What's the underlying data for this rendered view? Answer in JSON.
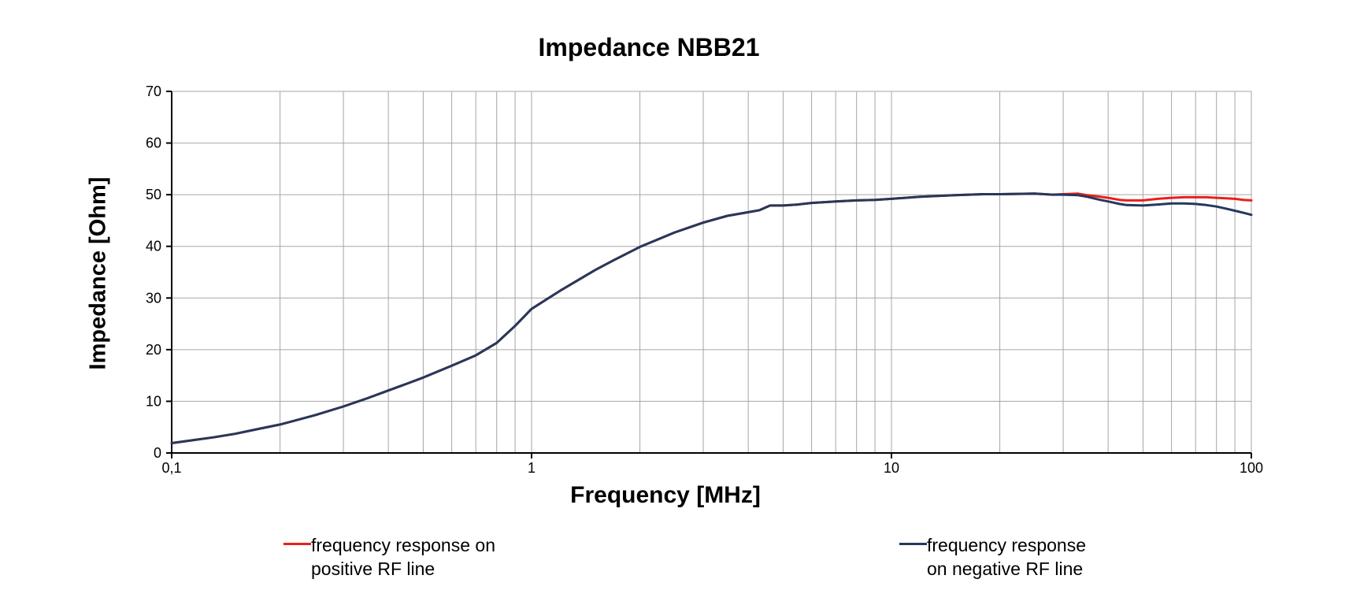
{
  "title": "Impedance NBB21",
  "y_axis": {
    "label": "Impedance [Ohm]",
    "ticks": [
      0,
      10,
      20,
      30,
      40,
      50,
      60,
      70
    ]
  },
  "x_axis": {
    "label": "Frequency [MHz]",
    "ticks": [
      {
        "value": 0.1,
        "label": "0,1"
      },
      {
        "value": 1,
        "label": "1"
      },
      {
        "value": 10,
        "label": "10"
      },
      {
        "value": 100,
        "label": "100"
      }
    ]
  },
  "legend": {
    "items": [
      {
        "line1": "frequency response on",
        "line2": "positive RF line",
        "color": "#e8201a"
      },
      {
        "line1": "frequency response",
        "line2": "on negative RF line",
        "color": "#24395b"
      }
    ]
  },
  "colors": {
    "positive_line": "#e8201a",
    "negative_line": "#24395b",
    "gridline": "#a6a6a6",
    "axis": "#000000",
    "background": "#ffffff",
    "text": "#000000"
  },
  "chart_data": {
    "type": "line",
    "title": "Impedance NBB21",
    "xlabel": "Frequency [MHz]",
    "ylabel": "Impedance [Ohm]",
    "x_scale": "log",
    "xlim": [
      0.1,
      100
    ],
    "ylim": [
      0,
      70
    ],
    "grid": true,
    "legend_position": "below",
    "x": [
      0.1,
      0.11,
      0.13,
      0.15,
      0.17,
      0.2,
      0.25,
      0.3,
      0.35,
      0.4,
      0.45,
      0.5,
      0.6,
      0.7,
      0.8,
      0.9,
      1.0,
      1.2,
      1.5,
      1.7,
      2.0,
      2.5,
      3.0,
      3.5,
      4.0,
      4.3,
      4.6,
      5.0,
      5.5,
      6.0,
      7.0,
      8.0,
      9.0,
      10,
      12,
      15,
      18,
      20,
      25,
      28,
      30,
      33,
      35,
      38,
      40,
      43,
      45,
      50,
      55,
      60,
      65,
      70,
      75,
      80,
      85,
      90,
      95,
      100
    ],
    "series": [
      {
        "name": "frequency response on positive RF line",
        "color": "#e8201a",
        "values": [
          1.9,
          2.3,
          3.0,
          3.7,
          4.5,
          5.5,
          7.3,
          9.0,
          10.6,
          12.1,
          13.4,
          14.6,
          16.9,
          18.9,
          21.3,
          24.6,
          27.9,
          31.4,
          35.4,
          37.4,
          39.9,
          42.7,
          44.6,
          45.9,
          46.6,
          47.0,
          47.9,
          47.9,
          48.1,
          48.4,
          48.7,
          48.9,
          49.0,
          49.2,
          49.6,
          49.9,
          50.1,
          50.1,
          50.2,
          50.0,
          50.1,
          50.2,
          49.9,
          49.6,
          49.4,
          49.0,
          48.9,
          48.9,
          49.2,
          49.4,
          49.5,
          49.5,
          49.5,
          49.4,
          49.3,
          49.2,
          49.0,
          48.9
        ]
      },
      {
        "name": "frequency response on negative RF line",
        "color": "#24395b",
        "values": [
          1.9,
          2.3,
          3.0,
          3.7,
          4.5,
          5.5,
          7.3,
          9.0,
          10.6,
          12.1,
          13.4,
          14.6,
          16.9,
          18.9,
          21.3,
          24.6,
          27.9,
          31.4,
          35.4,
          37.4,
          39.9,
          42.7,
          44.6,
          45.9,
          46.6,
          47.0,
          47.9,
          47.9,
          48.1,
          48.4,
          48.7,
          48.9,
          49.0,
          49.2,
          49.6,
          49.9,
          50.1,
          50.1,
          50.2,
          50.0,
          50.0,
          49.9,
          49.6,
          49.0,
          48.7,
          48.2,
          48.0,
          47.9,
          48.1,
          48.3,
          48.3,
          48.2,
          48.0,
          47.7,
          47.3,
          46.9,
          46.5,
          46.1
        ]
      }
    ]
  }
}
